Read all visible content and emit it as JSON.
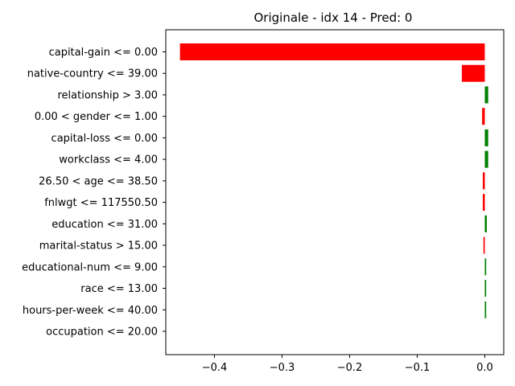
{
  "chart_data": {
    "type": "bar",
    "orientation": "horizontal",
    "title": "Originale - idx 14 - Pred: 0",
    "xlabel": "",
    "ylabel": "",
    "xlim": [
      -0.472,
      0.028
    ],
    "xticks": [
      -0.4,
      -0.3,
      -0.2,
      -0.1,
      0.0
    ],
    "xtick_labels": [
      "−0.4",
      "−0.3",
      "−0.2",
      "−0.1",
      "0.0"
    ],
    "grid": false,
    "categories": [
      "capital-gain <= 0.00",
      "native-country <= 39.00",
      "relationship > 3.00",
      "0.00 < gender <= 1.00",
      "capital-loss <= 0.00",
      "workclass <= 4.00",
      "26.50 < age <= 38.50",
      "fnlwgt <= 117550.50",
      "education <= 31.00",
      "marital-status > 15.00",
      "educational-num <= 9.00",
      "race <= 13.00",
      "hours-per-week <= 40.00",
      "occupation <= 20.00"
    ],
    "values": [
      -0.451,
      -0.034,
      0.005,
      -0.004,
      0.005,
      0.005,
      -0.003,
      -0.003,
      0.003,
      -0.002,
      0.002,
      0.002,
      0.002,
      0.0
    ],
    "colors": {
      "positive": "#008000",
      "negative": "#ff0000"
    }
  }
}
